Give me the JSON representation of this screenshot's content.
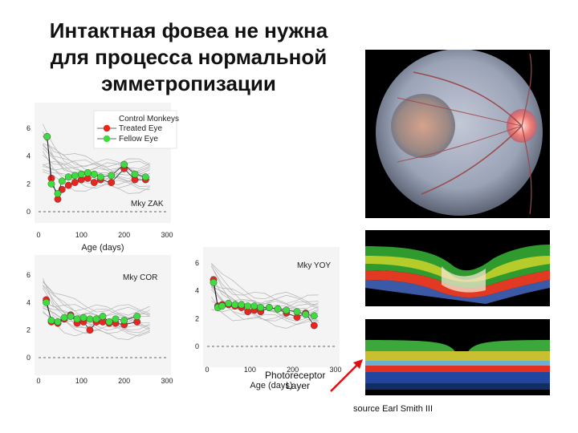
{
  "title_lines": [
    "Интактная фовеа не нужна",
    "для процесса нормальной",
    "эмметропизации"
  ],
  "legend": {
    "control": "Control Monkeys",
    "treated": "Treated Eye",
    "fellow": "Fellow Eye"
  },
  "colors": {
    "treated": "#e8251f",
    "fellow": "#3fdc3f",
    "control": "#b4b4b4",
    "arrow": "#e01010"
  },
  "photoreceptor_label": [
    "Photoreceptor",
    "Layer"
  ],
  "credit": "source Earl Smith III",
  "chart_data": [
    {
      "type": "line",
      "panel": "Mky ZAK",
      "xlabel": "Age (days)",
      "ylabel": "",
      "xlim": [
        0,
        300
      ],
      "ylim": [
        -1,
        7
      ],
      "xticks": [
        "0",
        "100",
        "200",
        "300"
      ],
      "yticks": [
        "0",
        "2",
        "4",
        "6"
      ],
      "series": [
        {
          "name": "Treated Eye",
          "x": [
            20,
            30,
            45,
            55,
            70,
            85,
            100,
            115,
            130,
            145,
            170,
            200,
            225,
            250
          ],
          "y": [
            5.4,
            2.4,
            0.9,
            1.6,
            1.9,
            2.1,
            2.3,
            2.4,
            2.1,
            2.3,
            2.1,
            3.1,
            2.3,
            2.3
          ]
        },
        {
          "name": "Fellow Eye",
          "x": [
            20,
            30,
            45,
            55,
            70,
            85,
            100,
            115,
            130,
            145,
            170,
            200,
            225,
            250
          ],
          "y": [
            5.4,
            2.0,
            1.3,
            2.2,
            2.5,
            2.6,
            2.7,
            2.8,
            2.7,
            2.5,
            2.6,
            3.4,
            2.7,
            2.5
          ]
        }
      ]
    },
    {
      "type": "line",
      "panel": "Mky COR",
      "xlim": [
        0,
        300
      ],
      "ylim": [
        -1,
        7
      ],
      "xticks": [
        "0",
        "100",
        "200",
        "300"
      ],
      "yticks": [
        "0",
        "2",
        "4",
        "6"
      ],
      "series": [
        {
          "name": "Treated Eye",
          "x": [
            18,
            30,
            45,
            60,
            75,
            90,
            105,
            120,
            135,
            150,
            165,
            180,
            200,
            230
          ],
          "y": [
            4.2,
            2.6,
            2.5,
            2.8,
            3.1,
            2.5,
            2.6,
            2.0,
            2.6,
            2.6,
            2.5,
            2.5,
            2.4,
            2.6
          ]
        },
        {
          "name": "Fellow Eye",
          "x": [
            18,
            30,
            45,
            60,
            75,
            90,
            105,
            120,
            135,
            150,
            165,
            180,
            200,
            230
          ],
          "y": [
            4.0,
            2.7,
            2.6,
            2.9,
            3.0,
            2.8,
            2.9,
            2.8,
            2.8,
            3.0,
            2.6,
            2.8,
            2.7,
            3.0
          ]
        }
      ]
    },
    {
      "type": "line",
      "panel": "Mky YOY",
      "xlabel": "Age (days)",
      "xlim": [
        0,
        300
      ],
      "ylim": [
        -1,
        7
      ],
      "xticks": [
        "0",
        "100",
        "200",
        "300"
      ],
      "yticks": [
        "0",
        "2",
        "4",
        "6"
      ],
      "series": [
        {
          "name": "Treated Eye",
          "x": [
            15,
            25,
            35,
            50,
            65,
            80,
            95,
            110,
            125,
            145,
            165,
            185,
            210,
            230,
            250
          ],
          "y": [
            4.8,
            2.9,
            3.0,
            3.0,
            2.9,
            2.8,
            2.5,
            2.6,
            2.5,
            2.8,
            2.7,
            2.4,
            2.1,
            2.4,
            1.5
          ]
        },
        {
          "name": "Fellow Eye",
          "x": [
            15,
            25,
            35,
            50,
            65,
            80,
            95,
            110,
            125,
            145,
            165,
            185,
            210,
            230,
            250
          ],
          "y": [
            4.6,
            2.8,
            2.9,
            3.1,
            3.0,
            3.0,
            2.9,
            2.9,
            2.8,
            2.8,
            2.7,
            2.6,
            2.5,
            2.3,
            2.2
          ]
        }
      ]
    }
  ]
}
